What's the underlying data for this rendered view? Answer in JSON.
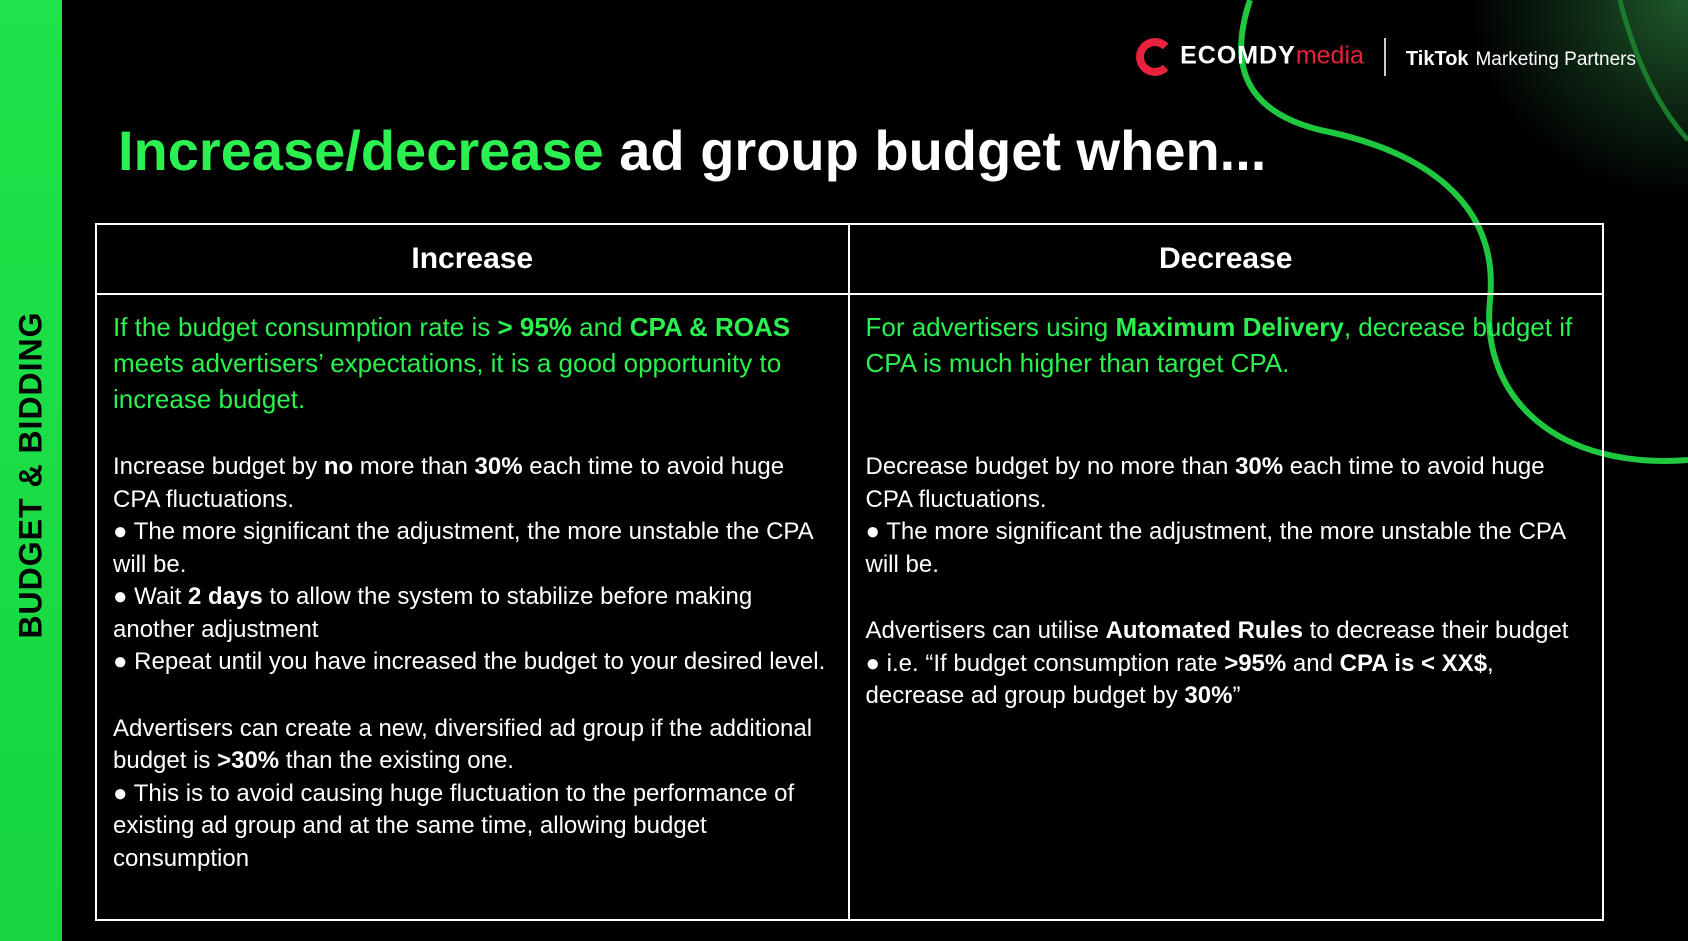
{
  "sidebar": "BUDGET & BIDDING",
  "brand": {
    "name": "ECOMDY",
    "suffix": "media",
    "partner": "TikTok",
    "partner_suffix": "Marketing Partners"
  },
  "title": {
    "highlight": "Increase/decrease",
    "rest": "ad group budget when..."
  },
  "table": {
    "headers": [
      "Increase",
      "Decrease"
    ],
    "cells": [
      [
        {
          "accent": true,
          "lines": [
            [
              {
                "t": "If the budget consumption rate is "
              },
              {
                "t": "> 95%",
                "b": true
              },
              {
                "t": " and "
              },
              {
                "t": "CPA & ROAS",
                "b": true
              },
              {
                "t": " meets advertisers’ expectations, it is a good opportunity to increase budget."
              }
            ]
          ]
        },
        {
          "lines": [
            [
              {
                "t": "Increase budget by "
              },
              {
                "t": "no",
                "b": true
              },
              {
                "t": " more than "
              },
              {
                "t": "30%",
                "b": true
              },
              {
                "t": " each time to avoid huge CPA fluctuations."
              }
            ],
            [
              {
                "t": "● The more significant the adjustment, the more unstable the CPA will be."
              }
            ],
            [
              {
                "t": "● Wait "
              },
              {
                "t": "2 days",
                "b": true
              },
              {
                "t": " to allow the system to stabilize before making another adjustment"
              }
            ],
            [
              {
                "t": "● Repeat until you have increased the budget to your desired level."
              }
            ]
          ]
        },
        {
          "lines": [
            [
              {
                "t": "Advertisers can create a new, diversified ad group if the additional budget is "
              },
              {
                "t": ">30%",
                "b": true
              },
              {
                "t": " than the existing one."
              }
            ],
            [
              {
                "t": "● This is to avoid causing huge fluctuation to the performance of existing ad group and at the same time, allowing budget consumption"
              }
            ]
          ]
        }
      ],
      [
        {
          "accent": true,
          "lines": [
            [
              {
                "t": "For advertisers using "
              },
              {
                "t": "Maximum Delivery",
                "b": true
              },
              {
                "t": ", decrease budget if CPA is much higher than target CPA."
              }
            ]
          ]
        },
        {
          "lines": [
            [
              {
                "t": "Decrease budget by no more than "
              },
              {
                "t": "30%",
                "b": true
              },
              {
                "t": " each time to avoid huge CPA fluctuations."
              }
            ],
            [
              {
                "t": "● The more significant the adjustment, the more unstable the CPA will be."
              }
            ]
          ]
        },
        {
          "lines": [
            [
              {
                "t": "Advertisers can utilise "
              },
              {
                "t": "Automated Rules",
                "b": true
              },
              {
                "t": " to decrease their budget"
              }
            ],
            [
              {
                "t": "● i.e. “If budget consumption rate "
              },
              {
                "t": ">95%",
                "b": true
              },
              {
                "t": " and "
              },
              {
                "t": "CPA is < XX$",
                "b": true
              },
              {
                "t": ", decrease ad group budget by "
              },
              {
                "t": "30%",
                "b": true
              },
              {
                "t": "”"
              }
            ]
          ]
        }
      ]
    ]
  }
}
